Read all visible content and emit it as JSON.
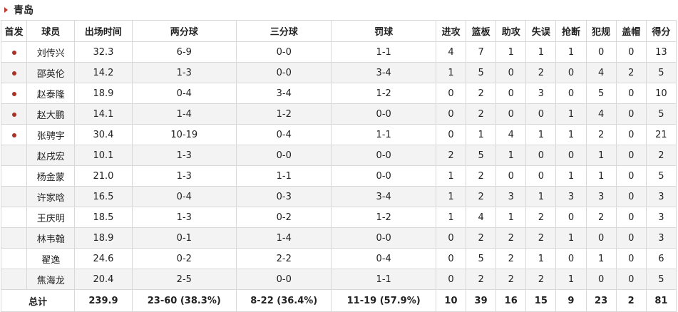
{
  "team": {
    "name": "青岛"
  },
  "headers": [
    "首发",
    "球员",
    "出场时间",
    "两分球",
    "三分球",
    "罚球",
    "进攻",
    "篮板",
    "助攻",
    "失误",
    "抢断",
    "犯规",
    "盖帽",
    "得分"
  ],
  "rows": [
    {
      "starter": true,
      "name": "刘传兴",
      "min": "32.3",
      "two": "6-9",
      "three": "0-0",
      "ft": "1-1",
      "oreb": "4",
      "reb": "7",
      "ast": "1",
      "tov": "1",
      "stl": "1",
      "pf": "0",
      "blk": "0",
      "pts": "13"
    },
    {
      "starter": true,
      "name": "邵英伦",
      "min": "14.2",
      "two": "1-3",
      "three": "0-0",
      "ft": "3-4",
      "oreb": "1",
      "reb": "5",
      "ast": "0",
      "tov": "2",
      "stl": "0",
      "pf": "4",
      "blk": "2",
      "pts": "5"
    },
    {
      "starter": true,
      "name": "赵泰隆",
      "min": "18.9",
      "two": "0-4",
      "three": "3-4",
      "ft": "1-2",
      "oreb": "0",
      "reb": "2",
      "ast": "0",
      "tov": "3",
      "stl": "0",
      "pf": "5",
      "blk": "0",
      "pts": "10"
    },
    {
      "starter": true,
      "name": "赵大鹏",
      "min": "14.1",
      "two": "1-4",
      "three": "1-2",
      "ft": "0-0",
      "oreb": "0",
      "reb": "2",
      "ast": "0",
      "tov": "0",
      "stl": "1",
      "pf": "4",
      "blk": "0",
      "pts": "5"
    },
    {
      "starter": true,
      "name": "张骋宇",
      "min": "30.4",
      "two": "10-19",
      "three": "0-4",
      "ft": "1-1",
      "oreb": "0",
      "reb": "1",
      "ast": "4",
      "tov": "1",
      "stl": "1",
      "pf": "2",
      "blk": "0",
      "pts": "21"
    },
    {
      "starter": false,
      "name": "赵戌宏",
      "min": "10.1",
      "two": "1-3",
      "three": "0-0",
      "ft": "0-0",
      "oreb": "2",
      "reb": "5",
      "ast": "1",
      "tov": "0",
      "stl": "0",
      "pf": "1",
      "blk": "0",
      "pts": "2"
    },
    {
      "starter": false,
      "name": "杨金蒙",
      "min": "21.0",
      "two": "1-3",
      "three": "1-1",
      "ft": "0-0",
      "oreb": "1",
      "reb": "2",
      "ast": "0",
      "tov": "0",
      "stl": "1",
      "pf": "1",
      "blk": "0",
      "pts": "5"
    },
    {
      "starter": false,
      "name": "许家晗",
      "min": "16.5",
      "two": "0-4",
      "three": "0-3",
      "ft": "3-4",
      "oreb": "1",
      "reb": "2",
      "ast": "3",
      "tov": "1",
      "stl": "3",
      "pf": "3",
      "blk": "0",
      "pts": "3"
    },
    {
      "starter": false,
      "name": "王庆明",
      "min": "18.5",
      "two": "1-3",
      "three": "0-2",
      "ft": "1-2",
      "oreb": "1",
      "reb": "4",
      "ast": "1",
      "tov": "2",
      "stl": "0",
      "pf": "2",
      "blk": "0",
      "pts": "3"
    },
    {
      "starter": false,
      "name": "林韦翰",
      "min": "18.9",
      "two": "0-1",
      "three": "1-4",
      "ft": "0-0",
      "oreb": "0",
      "reb": "2",
      "ast": "2",
      "tov": "2",
      "stl": "1",
      "pf": "0",
      "blk": "0",
      "pts": "3"
    },
    {
      "starter": false,
      "name": "翟逸",
      "min": "24.6",
      "two": "0-2",
      "three": "2-2",
      "ft": "0-4",
      "oreb": "0",
      "reb": "5",
      "ast": "2",
      "tov": "1",
      "stl": "0",
      "pf": "1",
      "blk": "0",
      "pts": "6"
    },
    {
      "starter": false,
      "name": "焦海龙",
      "min": "20.4",
      "two": "2-5",
      "three": "0-0",
      "ft": "1-1",
      "oreb": "0",
      "reb": "2",
      "ast": "2",
      "tov": "2",
      "stl": "1",
      "pf": "0",
      "blk": "0",
      "pts": "5"
    }
  ],
  "totals": {
    "label": "总计",
    "min": "239.9",
    "two": "23-60 (38.3%)",
    "three": "8-22 (36.4%)",
    "ft": "11-19 (57.9%)",
    "oreb": "10",
    "reb": "39",
    "ast": "16",
    "tov": "15",
    "stl": "9",
    "pf": "23",
    "blk": "2",
    "pts": "81"
  },
  "colors": {
    "accent": "#a93226",
    "stripe": "#f3f3f3",
    "border": "#d8d8d8"
  }
}
